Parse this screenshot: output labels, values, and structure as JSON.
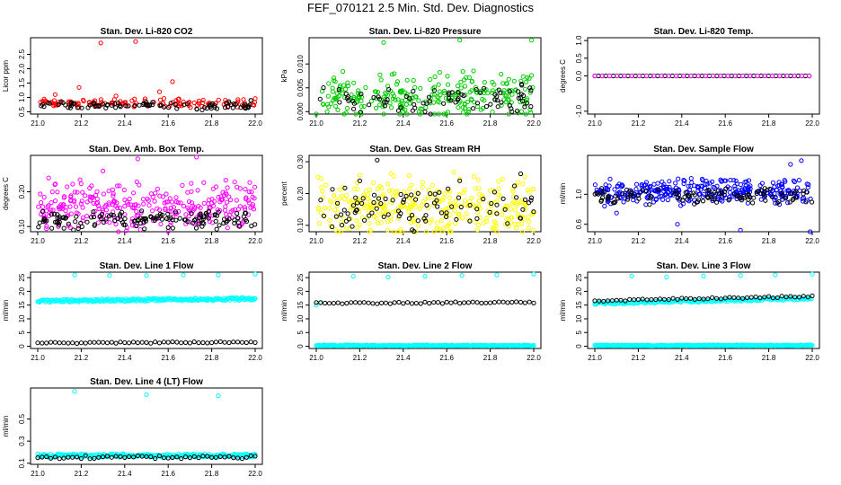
{
  "page": {
    "title": "FEF_070121  2.5 Min. Std. Dev. Diagnostics"
  },
  "chart_data": [
    {
      "type": "scatter",
      "title": "Stan. Dev. Li-820 CO2",
      "ylabel": "Licor ppm",
      "xlim": [
        21.0,
        22.0
      ],
      "ylim": [
        0.42,
        3.08
      ],
      "xticks": [
        "21.0",
        "21.2",
        "21.4",
        "21.6",
        "21.8",
        "22.0"
      ],
      "yticks": [
        {
          "v": 0.5,
          "t": "0.5"
        },
        {
          "v": 1.0,
          "t": "1.0"
        },
        {
          "v": 1.5,
          "t": "1.5"
        },
        {
          "v": 2.0,
          "t": "2.0"
        },
        {
          "v": 2.5,
          "t": "2.5"
        }
      ],
      "series": [
        {
          "color": "#ff0000",
          "dense": {
            "n": 120,
            "base": 0.8,
            "spread": 0.12,
            "seed": 11
          },
          "points": [
            [
              21.19,
              1.35
            ],
            [
              21.29,
              2.9
            ],
            [
              21.45,
              2.95
            ],
            [
              21.56,
              1.2
            ],
            [
              21.62,
              1.55
            ],
            [
              21.08,
              1.1
            ],
            [
              21.36,
              1.05
            ]
          ]
        },
        {
          "color": "#000000",
          "dense": {
            "n": 90,
            "base": 0.72,
            "spread": 0.1,
            "seed": 12
          },
          "points": [
            [
              21.98,
              0.9
            ]
          ]
        }
      ]
    },
    {
      "type": "scatter",
      "title": "Stan. Dev. Li-820 Pressure",
      "ylabel": "kPa",
      "xlim": [
        21.0,
        22.0
      ],
      "ylim": [
        -0.0005,
        0.0155
      ],
      "xticks": [
        "21.0",
        "21.2",
        "21.4",
        "21.6",
        "21.8",
        "22.0"
      ],
      "yticks": [
        {
          "v": 0.0,
          "t": "0.000"
        },
        {
          "v": 0.005,
          "t": "0.005"
        },
        {
          "v": 0.01,
          "t": "0.010"
        }
      ],
      "series": [
        {
          "color": "#00cc00",
          "dense": {
            "n": 260,
            "base": 0.0035,
            "spread": 0.0035,
            "seed": 21
          },
          "points": [
            [
              21.31,
              0.0145
            ],
            [
              21.66,
              0.015
            ],
            [
              21.99,
              0.015
            ],
            [
              21.05,
              0.0
            ],
            [
              21.4,
              0.0
            ],
            [
              21.7,
              0.0
            ]
          ]
        },
        {
          "color": "#000000",
          "dense": {
            "n": 80,
            "base": 0.0025,
            "spread": 0.0025,
            "seed": 22
          },
          "points": [
            [
              21.9,
              0.0
            ],
            [
              21.5,
              0.0
            ]
          ]
        }
      ]
    },
    {
      "type": "scatter",
      "title": "Stan. Dev. Li-820 Temp.",
      "ylabel": "degrees C",
      "xlim": [
        21.0,
        22.0
      ],
      "ylim": [
        -1.08,
        1.08
      ],
      "xticks": [
        "21.0",
        "21.2",
        "21.4",
        "21.6",
        "21.8",
        "22.0"
      ],
      "yticks": [
        {
          "v": -1.0,
          "t": "-1.0"
        },
        {
          "v": 0.0,
          "t": "0.0"
        },
        {
          "v": 0.5,
          "t": "0.5"
        },
        {
          "v": 1.0,
          "t": "1.0"
        }
      ],
      "series": [
        {
          "color": "#000000",
          "line": {
            "y": 0.0,
            "step": 0.017
          }
        },
        {
          "color": "#ff00ff",
          "line": {
            "y": 0.0,
            "step": 0.034
          }
        }
      ]
    },
    {
      "type": "scatter",
      "title": "Stan. Dev. Amb. Box Temp.",
      "ylabel": "degrees C",
      "xlim": [
        21.0,
        22.0
      ],
      "ylim": [
        0.085,
        0.305
      ],
      "xticks": [
        "21.0",
        "21.2",
        "21.4",
        "21.6",
        "21.8",
        "22.0"
      ],
      "yticks": [
        {
          "v": 0.1,
          "t": "0.10"
        },
        {
          "v": 0.2,
          "t": "0.20"
        }
      ],
      "series": [
        {
          "color": "#ff00ff",
          "dense": {
            "n": 300,
            "base": 0.16,
            "spread": 0.05,
            "seed": 41
          },
          "points": [
            [
              21.46,
              0.295
            ],
            [
              21.73,
              0.3
            ],
            [
              21.3,
              0.26
            ],
            [
              21.05,
              0.24
            ]
          ]
        },
        {
          "color": "#000000",
          "dense": {
            "n": 140,
            "base": 0.12,
            "spread": 0.02,
            "seed": 42
          },
          "points": []
        }
      ]
    },
    {
      "type": "scatter",
      "title": "Stan. Dev. Gas Stream RH",
      "ylabel": "percent",
      "xlim": [
        21.0,
        22.0
      ],
      "ylim": [
        0.08,
        0.32
      ],
      "xticks": [
        "21.0",
        "21.2",
        "21.4",
        "21.6",
        "21.8",
        "22.0"
      ],
      "yticks": [
        {
          "v": 0.1,
          "t": "0.10"
        },
        {
          "v": 0.2,
          "t": "0.20"
        },
        {
          "v": 0.3,
          "t": "0.30"
        }
      ],
      "series": [
        {
          "color": "#ffff00",
          "dense": {
            "n": 340,
            "base": 0.16,
            "spread": 0.07,
            "seed": 51
          },
          "points": []
        },
        {
          "color": "#000000",
          "dense": {
            "n": 90,
            "base": 0.16,
            "spread": 0.05,
            "seed": 52
          },
          "points": [
            [
              21.28,
              0.305
            ],
            [
              21.94,
              0.262
            ],
            [
              21.2,
              0.24
            ],
            [
              21.66,
              0.24
            ]
          ]
        }
      ]
    },
    {
      "type": "scatter",
      "title": "Stan. Dev. Sample Flow",
      "ylabel": "ml/min",
      "xlim": [
        21.0,
        22.0
      ],
      "ylim": [
        0.5,
        1.52
      ],
      "xticks": [
        "21.0",
        "21.2",
        "21.4",
        "21.6",
        "21.8",
        "22.0"
      ],
      "yticks": [
        {
          "v": 0.6,
          "t": "0.6"
        },
        {
          "v": 1.0,
          "t": "1.0"
        }
      ],
      "series": [
        {
          "color": "#0000ff",
          "dense": {
            "n": 320,
            "base": 1.03,
            "spread": 0.12,
            "seed": 61
          },
          "points": [
            [
              21.38,
              0.6
            ],
            [
              21.67,
              0.52
            ],
            [
              21.99,
              0.5
            ],
            [
              21.95,
              1.45
            ],
            [
              21.9,
              1.4
            ],
            [
              21.1,
              0.75
            ]
          ]
        },
        {
          "color": "#000000",
          "dense": {
            "n": 110,
            "base": 0.98,
            "spread": 0.08,
            "seed": 62
          },
          "points": []
        }
      ]
    },
    {
      "type": "scatter",
      "title": "Stan. Dev. Line 1 Flow",
      "ylabel": "ml/min",
      "xlim": [
        21.0,
        22.0
      ],
      "ylim": [
        -0.8,
        27.0
      ],
      "xticks": [
        "21.0",
        "21.2",
        "21.4",
        "21.6",
        "21.8",
        "22.0"
      ],
      "yticks": [
        {
          "v": 0,
          "t": "0"
        },
        {
          "v": 5,
          "t": "5"
        },
        {
          "v": 10,
          "t": "10"
        },
        {
          "v": 15,
          "t": "15"
        },
        {
          "v": 20,
          "t": "20"
        },
        {
          "v": 25,
          "t": "25"
        }
      ],
      "series": [
        {
          "color": "#00ffff",
          "line": {
            "y": 16.5,
            "step": 0.004,
            "jitter": 0.5,
            "slope": 0.8
          },
          "points": [
            [
              21.17,
              26
            ],
            [
              21.33,
              25.8
            ],
            [
              21.5,
              25.8
            ],
            [
              21.67,
              26
            ],
            [
              21.83,
              26
            ],
            [
              22.0,
              26.3
            ]
          ]
        },
        {
          "color": "#000000",
          "line": {
            "y": 1.2,
            "step": 0.02,
            "jitter": 0.25,
            "slope": 0.3
          },
          "points": []
        }
      ]
    },
    {
      "type": "scatter",
      "title": "Stan. Dev. Line 2 Flow",
      "ylabel": "ml/min",
      "xlim": [
        21.0,
        22.0
      ],
      "ylim": [
        -0.8,
        27.0
      ],
      "xticks": [
        "21.0",
        "21.2",
        "21.4",
        "21.6",
        "21.8",
        "22.0"
      ],
      "yticks": [
        {
          "v": 0,
          "t": "0"
        },
        {
          "v": 5,
          "t": "5"
        },
        {
          "v": 10,
          "t": "10"
        },
        {
          "v": 15,
          "t": "15"
        },
        {
          "v": 20,
          "t": "20"
        },
        {
          "v": 25,
          "t": "25"
        }
      ],
      "series": [
        {
          "color": "#00ffff",
          "line": {
            "y": 0.3,
            "step": 0.004,
            "jitter": 0.2,
            "slope": 0
          },
          "points": [
            [
              21.0,
              15
            ],
            [
              21.17,
              25.5
            ],
            [
              21.33,
              25.2
            ],
            [
              21.5,
              25.5
            ],
            [
              21.67,
              25.8
            ],
            [
              21.83,
              26
            ],
            [
              22.0,
              26.3
            ],
            [
              21.02,
              16
            ]
          ]
        },
        {
          "color": "#000000",
          "line": {
            "y": 15.7,
            "step": 0.02,
            "jitter": 0.3,
            "slope": 0.3
          },
          "points": []
        }
      ]
    },
    {
      "type": "scatter",
      "title": "Stan. Dev. Line 3 Flow",
      "ylabel": "ml/min",
      "xlim": [
        21.0,
        22.0
      ],
      "ylim": [
        -0.8,
        27.0
      ],
      "xticks": [
        "21.0",
        "21.2",
        "21.4",
        "21.6",
        "21.8",
        "22.0"
      ],
      "yticks": [
        {
          "v": 0,
          "t": "0"
        },
        {
          "v": 5,
          "t": "5"
        },
        {
          "v": 10,
          "t": "10"
        },
        {
          "v": 15,
          "t": "15"
        },
        {
          "v": 20,
          "t": "20"
        },
        {
          "v": 25,
          "t": "25"
        }
      ],
      "series": [
        {
          "color": "#00ffff",
          "line": {
            "y": 0.3,
            "step": 0.004,
            "jitter": 0.2,
            "slope": 0
          },
          "points": [
            [
              21.17,
              25.6
            ],
            [
              21.33,
              25.2
            ],
            [
              21.5,
              25.6
            ],
            [
              21.67,
              25.8
            ],
            [
              21.83,
              26
            ],
            [
              22.0,
              26.3
            ]
          ]
        },
        {
          "color": "#00ffff",
          "line": {
            "y": 15.6,
            "step": 0.006,
            "jitter": 0.4,
            "slope": 1.8
          },
          "points": [
            [
              21.0,
              15.5
            ]
          ]
        },
        {
          "color": "#000000",
          "line": {
            "y": 16.6,
            "step": 0.02,
            "jitter": 0.3,
            "slope": 1.6
          },
          "points": []
        }
      ]
    },
    {
      "type": "scatter",
      "title": "Stan. Dev. Line 4 (LT) Flow",
      "ylabel": "ml/min",
      "xlim": [
        21.0,
        22.0
      ],
      "ylim": [
        0.09,
        0.78
      ],
      "xticks": [
        "21.0",
        "21.2",
        "21.4",
        "21.6",
        "21.8",
        "22.0"
      ],
      "yticks": [
        {
          "v": 0.1,
          "t": "0.1"
        },
        {
          "v": 0.3,
          "t": "0.3"
        },
        {
          "v": 0.5,
          "t": "0.5"
        }
      ],
      "series": [
        {
          "color": "#00ffff",
          "line": {
            "y": 0.17,
            "step": 0.004,
            "jitter": 0.015,
            "slope": 0
          },
          "points": [
            [
              21.17,
              0.75
            ],
            [
              21.5,
              0.72
            ],
            [
              21.83,
              0.71
            ]
          ]
        },
        {
          "color": "#000000",
          "line": {
            "y": 0.155,
            "step": 0.02,
            "jitter": 0.015,
            "slope": 0
          },
          "points": []
        }
      ]
    }
  ]
}
